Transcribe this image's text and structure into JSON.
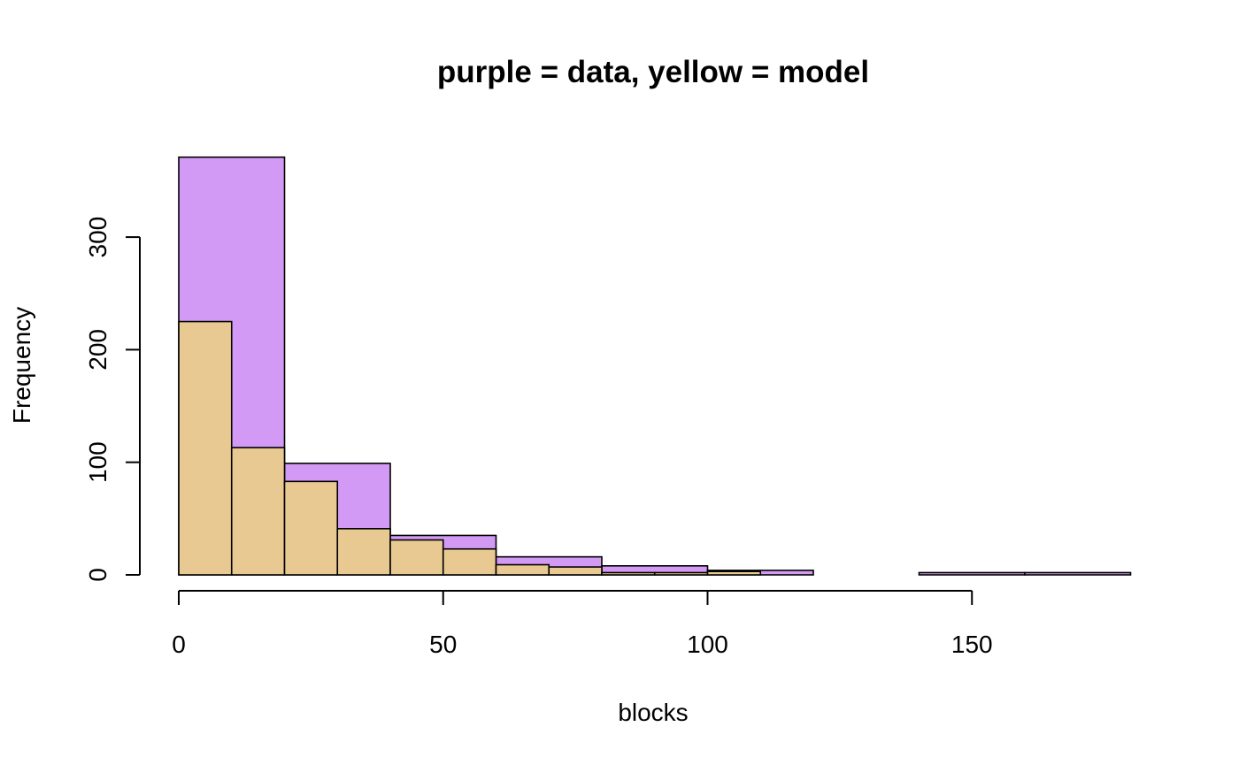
{
  "chart_data": {
    "type": "bar",
    "title": "purple = data, yellow = model",
    "xlabel": "blocks",
    "ylabel": "Frequency",
    "xlim": [
      0,
      180
    ],
    "ylim": [
      0,
      371
    ],
    "xticks": [
      0,
      50,
      100,
      150
    ],
    "yticks": [
      0,
      100,
      200,
      300
    ],
    "grid": false,
    "series": [
      {
        "color": "#d29af5",
        "bins": [
          {
            "x0": 0,
            "x1": 20,
            "count": 371
          },
          {
            "x0": 20,
            "x1": 40,
            "count": 99
          },
          {
            "x0": 40,
            "x1": 60,
            "count": 35
          },
          {
            "x0": 60,
            "x1": 80,
            "count": 16
          },
          {
            "x0": 80,
            "x1": 100,
            "count": 8
          },
          {
            "x0": 100,
            "x1": 120,
            "count": 4
          },
          {
            "x0": 120,
            "x1": 140,
            "count": 0
          },
          {
            "x0": 140,
            "x1": 160,
            "count": 2
          },
          {
            "x0": 160,
            "x1": 180,
            "count": 2
          }
        ]
      },
      {
        "color": "#e8c991",
        "bins": [
          {
            "x0": 0,
            "x1": 10,
            "count": 225
          },
          {
            "x0": 10,
            "x1": 20,
            "count": 113
          },
          {
            "x0": 20,
            "x1": 30,
            "count": 83
          },
          {
            "x0": 30,
            "x1": 40,
            "count": 41
          },
          {
            "x0": 40,
            "x1": 50,
            "count": 31
          },
          {
            "x0": 50,
            "x1": 60,
            "count": 23
          },
          {
            "x0": 60,
            "x1": 70,
            "count": 9
          },
          {
            "x0": 70,
            "x1": 80,
            "count": 7
          },
          {
            "x0": 80,
            "x1": 90,
            "count": 2
          },
          {
            "x0": 90,
            "x1": 100,
            "count": 2
          },
          {
            "x0": 100,
            "x1": 110,
            "count": 3
          }
        ]
      }
    ]
  }
}
